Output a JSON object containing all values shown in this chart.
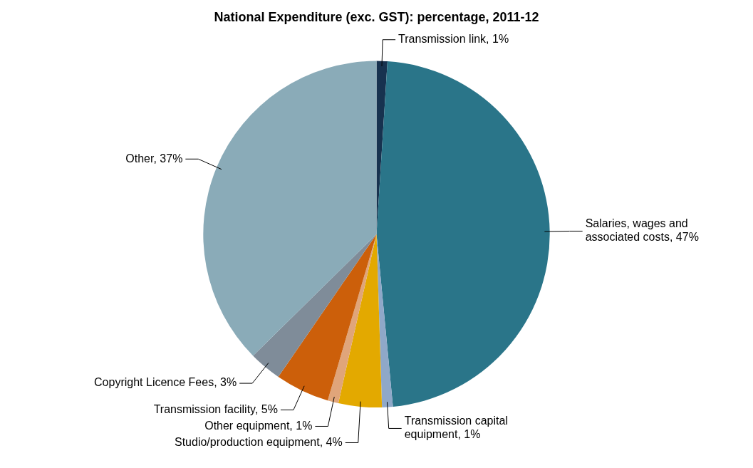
{
  "chart_data": {
    "type": "pie",
    "title": "National Expenditure (exc. GST): percentage, 2011-12",
    "categories": [
      "Transmission link",
      "Salaries, wages and associated costs",
      "Transmission capital equipment",
      "Studio/production equipment",
      "Other equipment",
      "Transmission facility",
      "Copyright Licence Fees",
      "Other"
    ],
    "values": [
      1,
      47,
      1,
      4,
      1,
      5,
      3,
      37
    ],
    "value_labels": [
      "1%",
      "47%",
      "1%",
      "4%",
      "1%",
      "5%",
      "3%",
      "37%"
    ],
    "colors": [
      "#17324f",
      "#2a7589",
      "#8fa8c8",
      "#e3a900",
      "#e0a57a",
      "#cc5f0a",
      "#7f8c99",
      "#8aabb8"
    ],
    "legend": false
  }
}
